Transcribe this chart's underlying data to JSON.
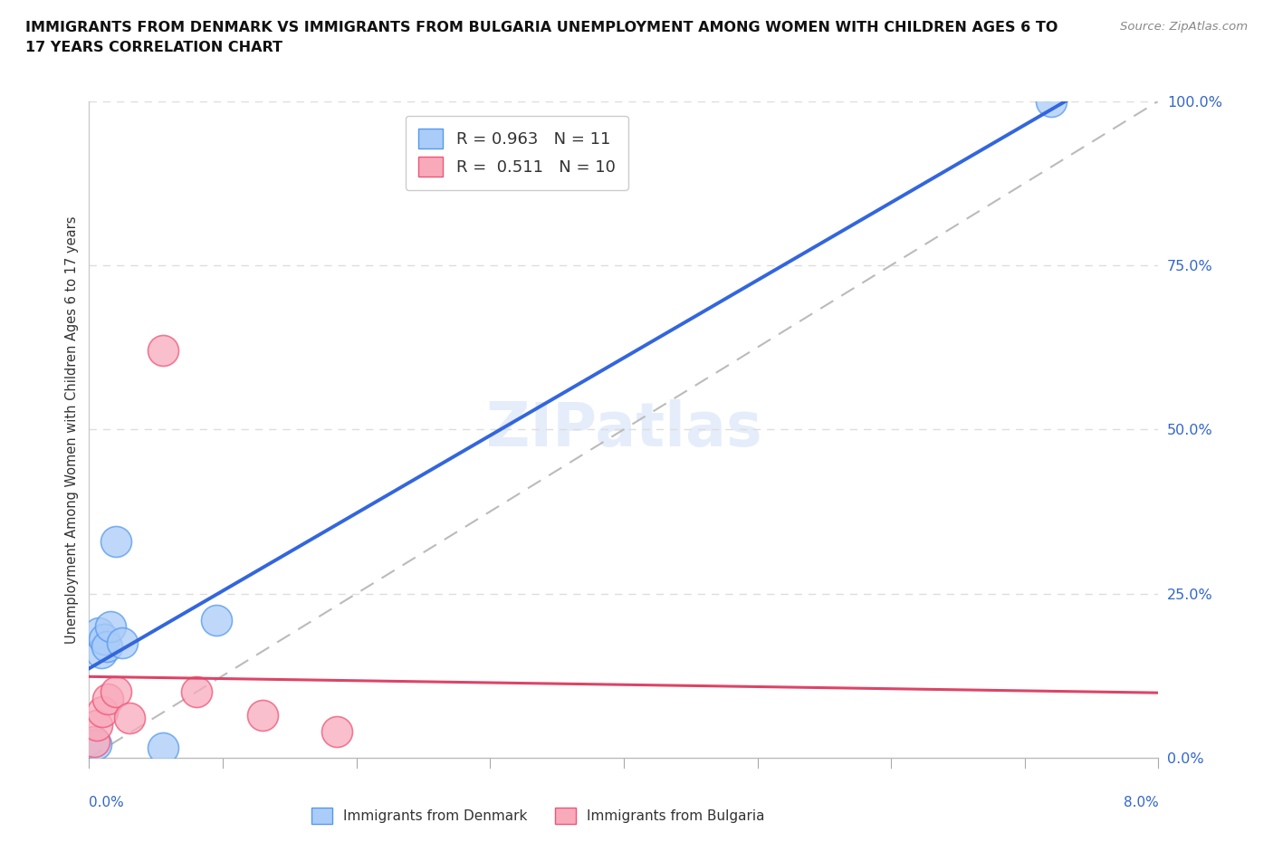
{
  "title_line1": "IMMIGRANTS FROM DENMARK VS IMMIGRANTS FROM BULGARIA UNEMPLOYMENT AMONG WOMEN WITH CHILDREN AGES 6 TO",
  "title_line2": "17 YEARS CORRELATION CHART",
  "source": "Source: ZipAtlas.com",
  "ylabel": "Unemployment Among Women with Children Ages 6 to 17 years",
  "xlim": [
    0.0,
    8.0
  ],
  "ylim": [
    0.0,
    100.0
  ],
  "yticks": [
    0.0,
    25.0,
    50.0,
    75.0,
    100.0
  ],
  "ytick_labels": [
    "0.0%",
    "25.0%",
    "50.0%",
    "75.0%",
    "100.0%"
  ],
  "denmark_R": 0.963,
  "denmark_N": 11,
  "bulgaria_R": 0.511,
  "bulgaria_N": 10,
  "denmark_color": "#aaccf8",
  "bulgaria_color": "#f8aabb",
  "denmark_edge_color": "#5599ee",
  "bulgaria_edge_color": "#ee5577",
  "denmark_line_color": "#3366dd",
  "bulgaria_line_color": "#dd4466",
  "ref_line_color": "#bbbbbb",
  "denmark_x": [
    0.05,
    0.07,
    0.09,
    0.11,
    0.13,
    0.16,
    0.2,
    0.25,
    0.55,
    0.95,
    7.2
  ],
  "denmark_y": [
    2.0,
    19.0,
    16.0,
    18.0,
    17.0,
    20.0,
    33.0,
    17.5,
    1.5,
    21.0,
    100.0
  ],
  "bulgaria_x": [
    0.04,
    0.06,
    0.1,
    0.14,
    0.2,
    0.3,
    0.55,
    0.8,
    1.3,
    1.85
  ],
  "bulgaria_y": [
    2.5,
    5.0,
    7.0,
    9.0,
    10.0,
    6.0,
    62.0,
    10.0,
    6.5,
    4.0
  ],
  "watermark_text": "ZIPatlas",
  "legend_labels": [
    "Immigrants from Denmark",
    "Immigrants from Bulgaria"
  ],
  "background_color": "#ffffff",
  "grid_color": "#dddddd",
  "title_color": "#111111",
  "axis_label_color": "#3366cc",
  "ylabel_color": "#333333"
}
